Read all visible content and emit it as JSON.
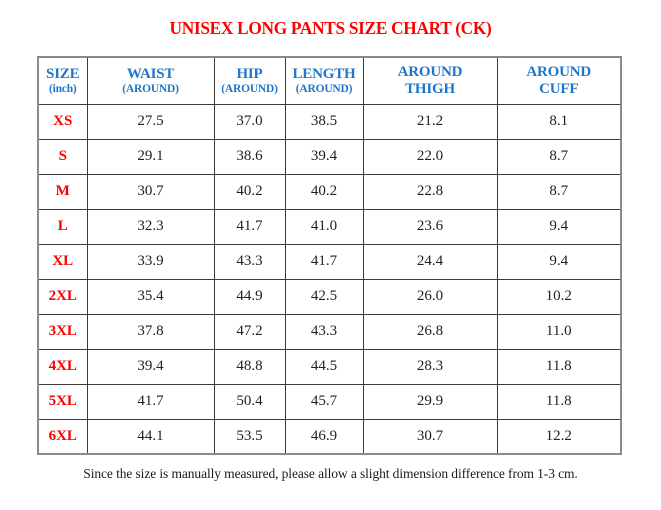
{
  "title": "UNISEX LONG PANTS SIZE CHART (CK)",
  "footer_note": "Since the size is manually measured, please allow a slight dimension difference from 1-3 cm.",
  "colors": {
    "title_red": "#fe0000",
    "size_red": "#fb0000",
    "header_blue": "#1e76c8",
    "value_text": "#1f1f1f",
    "outer_border": "#8a8a8a",
    "inner_border": "#3b3b3b",
    "page_bg": "#ffffff"
  },
  "table": {
    "headers": [
      [
        "SIZE",
        "(inch)"
      ],
      [
        "WAIST",
        "(AROUND)"
      ],
      [
        "HIP",
        "(AROUND)"
      ],
      [
        "LENGTH",
        "(AROUND)"
      ],
      [
        "AROUND",
        "THIGH"
      ],
      [
        "AROUND",
        "CUFF"
      ]
    ],
    "rows": [
      [
        "XS",
        "27.5",
        "37.0",
        "38.5",
        "21.2",
        "8.1"
      ],
      [
        "S",
        "29.1",
        "38.6",
        "39.4",
        "22.0",
        "8.7"
      ],
      [
        "M",
        "30.7",
        "40.2",
        "40.2",
        "22.8",
        "8.7"
      ],
      [
        "L",
        "32.3",
        "41.7",
        "41.0",
        "23.6",
        "9.4"
      ],
      [
        "XL",
        "33.9",
        "43.3",
        "41.7",
        "24.4",
        "9.4"
      ],
      [
        "2XL",
        "35.4",
        "44.9",
        "42.5",
        "26.0",
        "10.2"
      ],
      [
        "3XL",
        "37.8",
        "47.2",
        "43.3",
        "26.8",
        "11.0"
      ],
      [
        "4XL",
        "39.4",
        "48.8",
        "44.5",
        "28.3",
        "11.8"
      ],
      [
        "5XL",
        "41.7",
        "50.4",
        "45.7",
        "29.9",
        "11.8"
      ],
      [
        "6XL",
        "44.1",
        "53.5",
        "46.9",
        "30.7",
        "12.2"
      ]
    ]
  },
  "chart_data": {
    "type": "table",
    "title": "UNISEX LONG PANTS SIZE CHART (CK)",
    "unit": "inch",
    "columns": [
      "SIZE (inch)",
      "WAIST (AROUND)",
      "HIP (AROUND)",
      "LENGTH (AROUND)",
      "AROUND THIGH",
      "AROUND CUFF"
    ],
    "rows": [
      {
        "size": "XS",
        "waist": 27.5,
        "hip": 37.0,
        "length": 38.5,
        "around_thigh": 21.2,
        "around_cuff": 8.1
      },
      {
        "size": "S",
        "waist": 29.1,
        "hip": 38.6,
        "length": 39.4,
        "around_thigh": 22.0,
        "around_cuff": 8.7
      },
      {
        "size": "M",
        "waist": 30.7,
        "hip": 40.2,
        "length": 40.2,
        "around_thigh": 22.8,
        "around_cuff": 8.7
      },
      {
        "size": "L",
        "waist": 32.3,
        "hip": 41.7,
        "length": 41.0,
        "around_thigh": 23.6,
        "around_cuff": 9.4
      },
      {
        "size": "XL",
        "waist": 33.9,
        "hip": 43.3,
        "length": 41.7,
        "around_thigh": 24.4,
        "around_cuff": 9.4
      },
      {
        "size": "2XL",
        "waist": 35.4,
        "hip": 44.9,
        "length": 42.5,
        "around_thigh": 26.0,
        "around_cuff": 10.2
      },
      {
        "size": "3XL",
        "waist": 37.8,
        "hip": 47.2,
        "length": 43.3,
        "around_thigh": 26.8,
        "around_cuff": 11.0
      },
      {
        "size": "4XL",
        "waist": 39.4,
        "hip": 48.8,
        "length": 44.5,
        "around_thigh": 28.3,
        "around_cuff": 11.8
      },
      {
        "size": "5XL",
        "waist": 41.7,
        "hip": 50.4,
        "length": 45.7,
        "around_thigh": 29.9,
        "around_cuff": 11.8
      },
      {
        "size": "6XL",
        "waist": 44.1,
        "hip": 53.5,
        "length": 46.9,
        "around_thigh": 30.7,
        "around_cuff": 12.2
      }
    ],
    "footnote": "Since the size is manually measured, please allow a slight dimension difference from 1-3 cm."
  }
}
